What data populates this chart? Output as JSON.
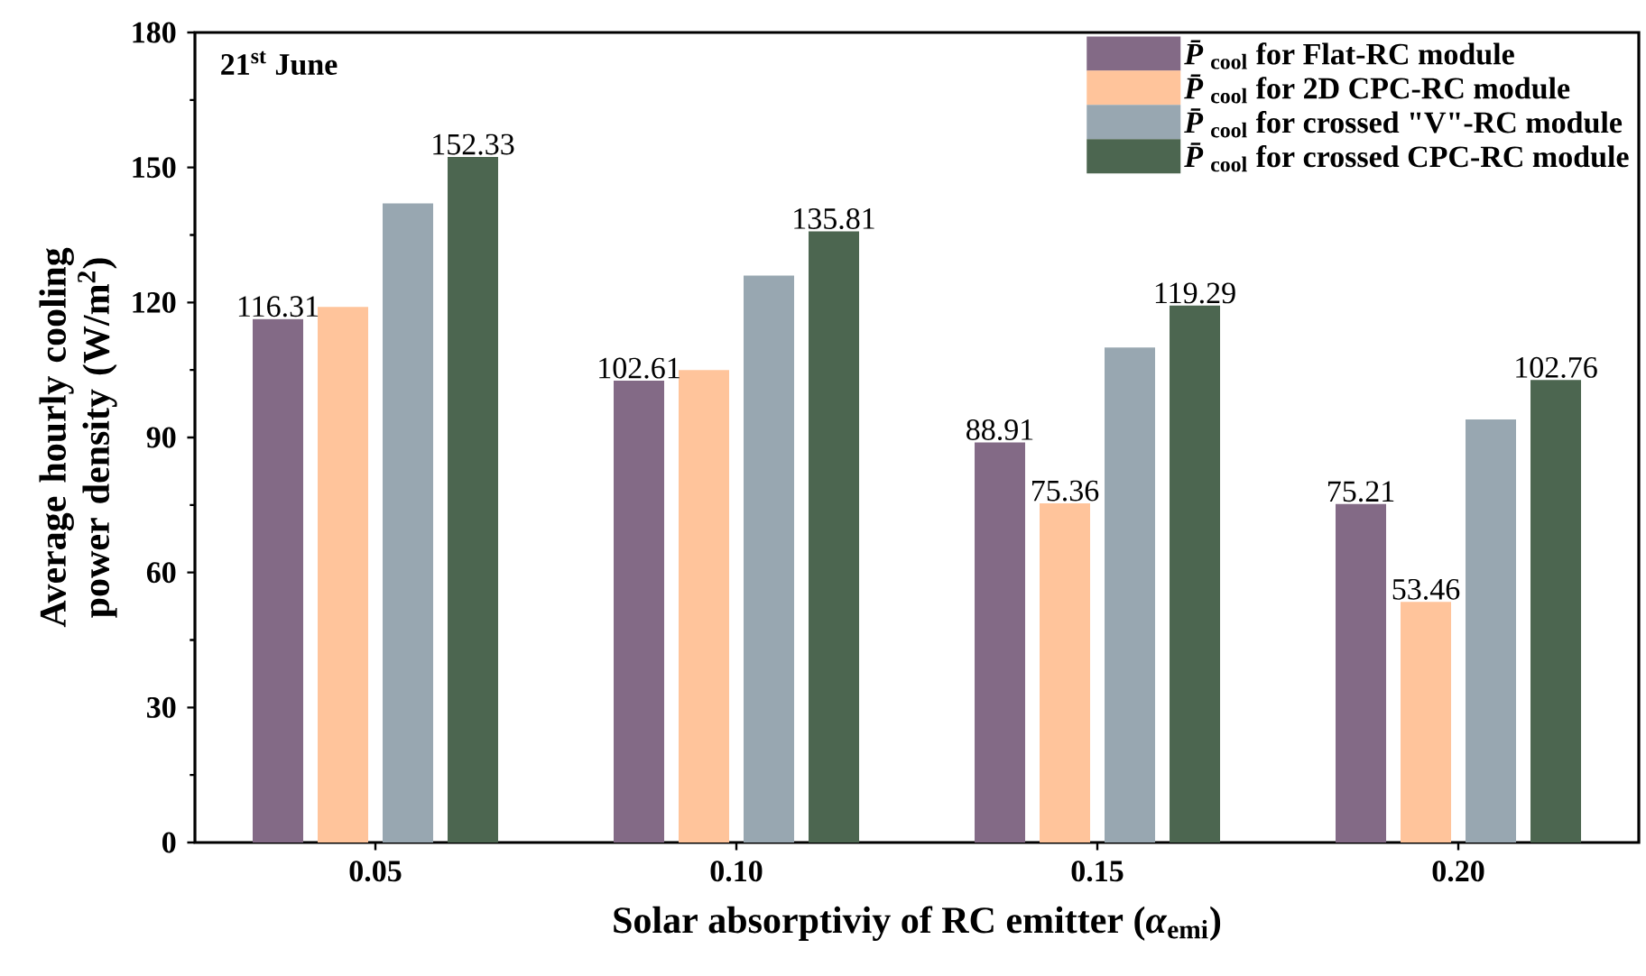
{
  "chart_data": {
    "type": "bar",
    "xlabel": "Solar absorptiviy of RC emitter (*α*$_{emi}$)",
    "ylabel": "Average hourly cooling power density (W/m$^{2}$)",
    "annotations": [
      "21$^{st}$ June"
    ],
    "categories": [
      "0.05",
      "0.10",
      "0.15",
      "0.20"
    ],
    "series": [
      {
        "name": "*P̄*$_{cool}$ for Flat-RC module",
        "color": "#836a86",
        "values": [
          116.31,
          102.61,
          88.91,
          75.21
        ],
        "value_labels": [
          "116.31",
          "102.61",
          "88.91",
          "75.21"
        ]
      },
      {
        "name": "*P̄*$_{cool}$ for 2D CPC-RC module",
        "color": "#ffc49b",
        "values": [
          119,
          105,
          75.36,
          53.46
        ],
        "value_labels": [
          null,
          null,
          "75.36",
          "53.46"
        ]
      },
      {
        "name": "*P̄*$_{cool}$ for crossed \"V\"-RC module",
        "color": "#98a7b1",
        "values": [
          142,
          126,
          110,
          94
        ],
        "value_labels": [
          null,
          null,
          null,
          null
        ]
      },
      {
        "name": "*P̄*$_{cool}$ for crossed CPC-RC module",
        "color": "#4c6650",
        "values": [
          152.33,
          135.81,
          119.29,
          102.76
        ],
        "value_labels": [
          "152.33",
          "135.81",
          "119.29",
          "102.76"
        ]
      }
    ],
    "ylim": [
      0,
      180
    ],
    "yticks": [
      0,
      30,
      60,
      90,
      120,
      150,
      180
    ],
    "grid": false,
    "legend": "top right"
  }
}
